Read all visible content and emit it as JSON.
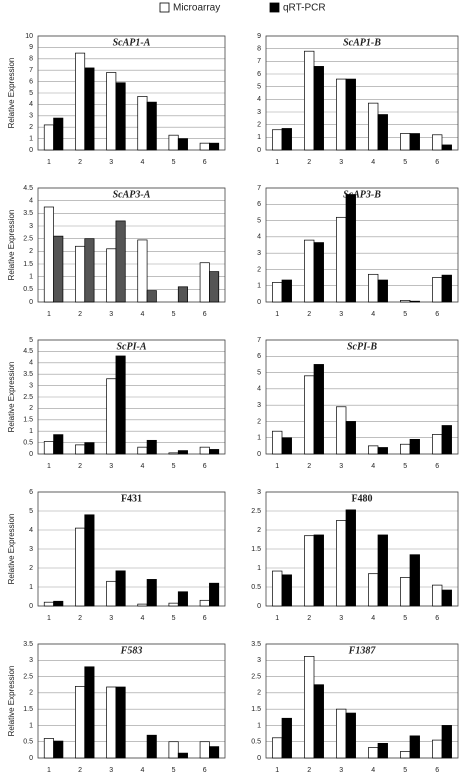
{
  "legend": {
    "items": [
      {
        "name": "Microarray",
        "color": "#ffffff"
      },
      {
        "name": "qRT-PCR",
        "color": "#000000"
      }
    ]
  },
  "chart_data": [
    {
      "type": "bar",
      "title": "ScAP1-A",
      "italic_title": true,
      "ylabel": "Relative Expression",
      "categories": [
        "1",
        "2",
        "3",
        "4",
        "5",
        "6"
      ],
      "ylim": [
        0,
        10
      ],
      "yticks": [
        0,
        1,
        2,
        3,
        4,
        5,
        6,
        7,
        8,
        9,
        10
      ],
      "grid": true,
      "series": [
        {
          "color": "#ffffff",
          "values": [
            2.2,
            8.5,
            6.8,
            4.7,
            1.3,
            0.6
          ]
        },
        {
          "color": "#000000",
          "values": [
            2.8,
            7.2,
            5.9,
            4.2,
            1.0,
            0.6
          ]
        }
      ]
    },
    {
      "type": "bar",
      "title": "ScAP1-B",
      "italic_title": true,
      "categories": [
        "1",
        "2",
        "3",
        "4",
        "5",
        "6"
      ],
      "ylim": [
        0,
        9
      ],
      "yticks": [
        0,
        1,
        2,
        3,
        4,
        5,
        6,
        7,
        8,
        9
      ],
      "grid": true,
      "series": [
        {
          "color": "#ffffff",
          "values": [
            1.6,
            7.8,
            5.6,
            3.7,
            1.3,
            1.2
          ]
        },
        {
          "color": "#000000",
          "values": [
            1.7,
            6.6,
            5.6,
            2.8,
            1.3,
            0.4
          ]
        }
      ]
    },
    {
      "type": "bar",
      "title": "ScAP3-A",
      "italic_title": true,
      "ylabel": "Relative Expression",
      "categories": [
        "1",
        "2",
        "3",
        "4",
        "5",
        "6"
      ],
      "ylim": [
        0,
        4.5
      ],
      "yticks": [
        0,
        0.5,
        1,
        1.5,
        2,
        2.5,
        3,
        3.5,
        4,
        4.5
      ],
      "grid": true,
      "series": [
        {
          "color": "#ffffff",
          "values": [
            3.75,
            2.2,
            2.1,
            2.45,
            0,
            1.55
          ]
        },
        {
          "color": "#555555",
          "values": [
            2.6,
            2.5,
            3.2,
            0.45,
            0.6,
            1.2
          ]
        }
      ]
    },
    {
      "type": "bar",
      "title": "ScAP3-B",
      "italic_title": true,
      "categories": [
        "1",
        "2",
        "3",
        "4",
        "5",
        "6"
      ],
      "ylim": [
        0,
        7
      ],
      "yticks": [
        0,
        1,
        2,
        3,
        4,
        5,
        6,
        7
      ],
      "grid": true,
      "series": [
        {
          "color": "#ffffff",
          "values": [
            1.2,
            3.8,
            5.2,
            1.7,
            0.1,
            1.5
          ]
        },
        {
          "color": "#000000",
          "values": [
            1.35,
            3.65,
            6.6,
            1.35,
            0.05,
            1.65
          ]
        }
      ]
    },
    {
      "type": "bar",
      "title": "ScPI-A",
      "italic_title": true,
      "ylabel": "Relative Expression",
      "categories": [
        "1",
        "2",
        "3",
        "4",
        "5",
        "6"
      ],
      "ylim": [
        0,
        5
      ],
      "yticks": [
        0,
        0.5,
        1,
        1.5,
        2,
        2.5,
        3,
        3.5,
        4,
        4.5,
        5
      ],
      "grid": true,
      "series": [
        {
          "color": "#ffffff",
          "values": [
            0.55,
            0.4,
            3.3,
            0.3,
            0.05,
            0.3
          ]
        },
        {
          "color": "#000000",
          "values": [
            0.85,
            0.5,
            4.3,
            0.6,
            0.15,
            0.2
          ]
        }
      ]
    },
    {
      "type": "bar",
      "title": "ScPI-B",
      "italic_title": true,
      "categories": [
        "1",
        "2",
        "3",
        "4",
        "5",
        "6"
      ],
      "ylim": [
        0,
        7
      ],
      "yticks": [
        0,
        1,
        2,
        3,
        4,
        5,
        6,
        7
      ],
      "grid": true,
      "series": [
        {
          "color": "#ffffff",
          "values": [
            1.4,
            4.8,
            2.9,
            0.5,
            0.6,
            1.2
          ]
        },
        {
          "color": "#000000",
          "values": [
            1.0,
            5.5,
            2.0,
            0.4,
            0.9,
            1.75
          ]
        }
      ]
    },
    {
      "type": "bar",
      "title": "F431",
      "italic_title": false,
      "ylabel": "Relative Expression",
      "categories": [
        "1",
        "2",
        "3",
        "4",
        "5",
        "6"
      ],
      "ylim": [
        0,
        6
      ],
      "yticks": [
        0,
        1,
        2,
        3,
        4,
        5,
        6
      ],
      "grid": true,
      "series": [
        {
          "color": "#ffffff",
          "values": [
            0.2,
            4.1,
            1.3,
            0.1,
            0.15,
            0.3
          ]
        },
        {
          "color": "#000000",
          "values": [
            0.25,
            4.8,
            1.85,
            1.4,
            0.75,
            1.2
          ]
        }
      ]
    },
    {
      "type": "bar",
      "title": "F480",
      "italic_title": false,
      "categories": [
        "1",
        "2",
        "3",
        "4",
        "5",
        "6"
      ],
      "ylim": [
        0,
        3
      ],
      "yticks": [
        0,
        0.5,
        1,
        1.5,
        2,
        2.5,
        3
      ],
      "grid": true,
      "series": [
        {
          "color": "#ffffff",
          "values": [
            0.92,
            1.85,
            2.25,
            0.85,
            0.75,
            0.55
          ]
        },
        {
          "color": "#000000",
          "values": [
            0.82,
            1.87,
            2.53,
            1.87,
            1.35,
            0.42
          ]
        }
      ]
    },
    {
      "type": "bar",
      "title": "F583",
      "italic_title": true,
      "ylabel": "Relative Expression",
      "categories": [
        "1",
        "2",
        "3",
        "4",
        "5",
        "6"
      ],
      "ylim": [
        0,
        3.5
      ],
      "yticks": [
        0,
        0.5,
        1,
        1.5,
        2,
        2.5,
        3,
        3.5
      ],
      "grid": true,
      "series": [
        {
          "color": "#ffffff",
          "values": [
            0.6,
            2.2,
            2.18,
            0,
            0.5,
            0.5
          ]
        },
        {
          "color": "#000000",
          "values": [
            0.52,
            2.8,
            2.18,
            0.7,
            0.15,
            0.35
          ]
        }
      ]
    },
    {
      "type": "bar",
      "title": "F1387",
      "italic_title": true,
      "categories": [
        "1",
        "2",
        "3",
        "4",
        "5",
        "6"
      ],
      "ylim": [
        0,
        3.5
      ],
      "yticks": [
        0,
        0.5,
        1,
        1.5,
        2,
        2.5,
        3,
        3.5
      ],
      "grid": true,
      "series": [
        {
          "color": "#ffffff",
          "values": [
            0.62,
            3.12,
            1.5,
            0.32,
            0.2,
            0.55
          ]
        },
        {
          "color": "#000000",
          "values": [
            1.22,
            2.25,
            1.38,
            0.45,
            0.68,
            1.0
          ]
        }
      ]
    }
  ]
}
